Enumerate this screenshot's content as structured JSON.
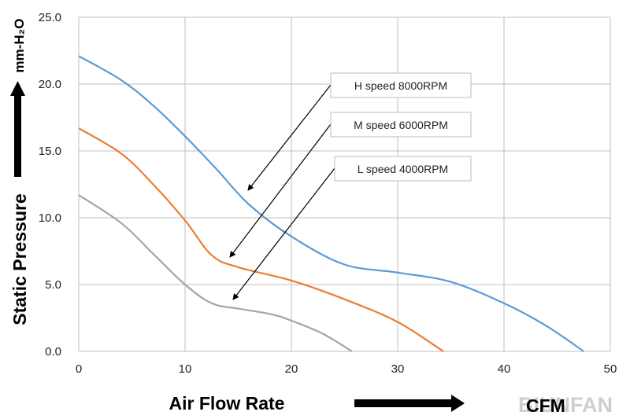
{
  "chart_data": {
    "type": "line",
    "title": "",
    "xlabel": "Air Flow Rate",
    "ylabel": "Static Pressure",
    "x_unit": "CFM",
    "y_unit": "mm-H₂O",
    "xlim": [
      0,
      50
    ],
    "ylim": [
      0,
      25
    ],
    "x_ticks": [
      0,
      10,
      20,
      30,
      40,
      50
    ],
    "y_ticks": [
      "0.0",
      "5.0",
      "10.0",
      "15.0",
      "20.0",
      "25.0"
    ],
    "grid": true,
    "series": [
      {
        "name": "H speed 8000RPM",
        "color": "#5b9bd5",
        "x": [
          0,
          4,
          7,
          10,
          13,
          16,
          20,
          25,
          30,
          35,
          40,
          44,
          47.5
        ],
        "y": [
          22.1,
          20.3,
          18.4,
          16.1,
          13.6,
          11.0,
          8.6,
          6.5,
          5.9,
          5.2,
          3.6,
          1.9,
          0.0
        ]
      },
      {
        "name": "M speed 6000RPM",
        "color": "#ed7d31",
        "x": [
          0,
          4,
          7,
          10,
          12.5,
          15,
          20,
          25,
          30,
          34.3
        ],
        "y": [
          16.7,
          14.8,
          12.5,
          9.8,
          7.2,
          6.3,
          5.3,
          3.9,
          2.2,
          0.0
        ]
      },
      {
        "name": "L speed 4000RPM",
        "color": "#a5a5a5",
        "x": [
          0,
          4,
          7,
          10,
          12.5,
          15,
          18,
          20,
          23,
          25.7
        ],
        "y": [
          11.7,
          9.6,
          7.3,
          5.0,
          3.6,
          3.2,
          2.8,
          2.3,
          1.3,
          0.0
        ]
      }
    ]
  },
  "watermark": "BIUNFAN"
}
